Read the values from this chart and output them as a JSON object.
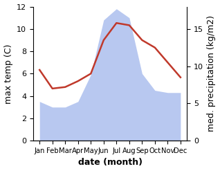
{
  "months": [
    "Jan",
    "Feb",
    "Mar",
    "Apr",
    "May",
    "Jun",
    "Jul",
    "Aug",
    "Sep",
    "Oct",
    "Nov",
    "Dec"
  ],
  "month_x": [
    1,
    2,
    3,
    4,
    5,
    6,
    7,
    8,
    9,
    10,
    11,
    12
  ],
  "temperature": [
    3.5,
    3.0,
    3.0,
    3.5,
    5.9,
    10.8,
    11.8,
    11.0,
    6.0,
    4.5,
    4.3,
    4.3
  ],
  "precipitation": [
    9.5,
    7.0,
    7.2,
    8.0,
    9.0,
    13.5,
    15.8,
    15.5,
    13.5,
    12.5,
    10.5,
    8.5
  ],
  "temp_fill_color": "#b8c8f0",
  "precip_color": "#c0392b",
  "temp_ylim": [
    0,
    12
  ],
  "precip_ylim": [
    0,
    18
  ],
  "precip_yticks": [
    0,
    5,
    10,
    15
  ],
  "temp_yticks": [
    0,
    2,
    4,
    6,
    8,
    10,
    12
  ],
  "xlabel": "date (month)",
  "ylabel_left": "max temp (C)",
  "ylabel_right": "med. precipitation (kg/m2)",
  "label_fontsize": 9
}
